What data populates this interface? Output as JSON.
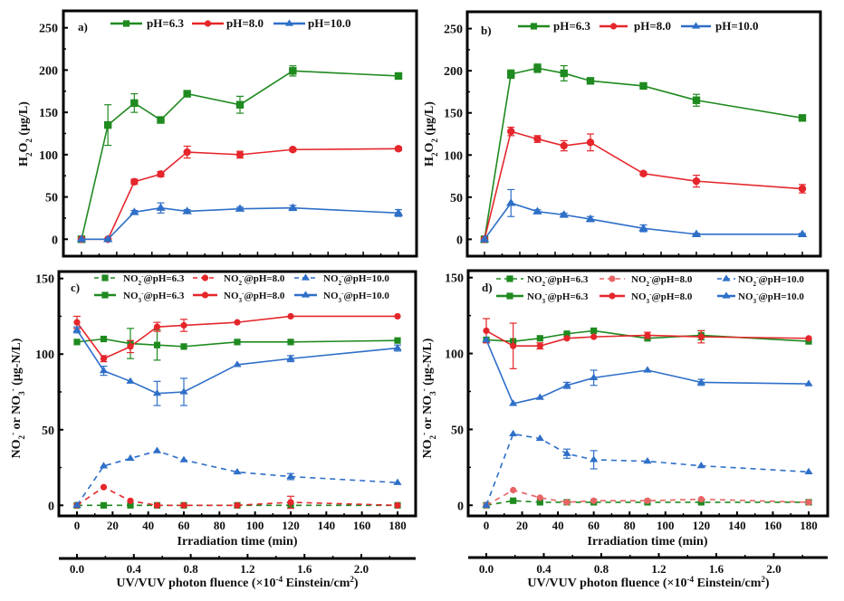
{
  "colors": {
    "pH6.3": "#1f8a1f",
    "pH8.0": "#e5262b",
    "pH10.0": "#2e6fc8",
    "pH8.0_nitrite_d": "#e86464"
  },
  "x_time": [
    0,
    15,
    30,
    45,
    60,
    90,
    120,
    180
  ],
  "chart_data": [
    {
      "type": "line",
      "panel_label": "a)",
      "ylabel": [
        {
          "t": "H"
        },
        {
          "t": "2",
          "sub": true
        },
        {
          "t": "O"
        },
        {
          "t": "2",
          "sub": true
        },
        {
          "t": " (μg/L)"
        }
      ],
      "ylim": [
        -20,
        270
      ],
      "yticks": [
        0,
        50,
        100,
        150,
        200,
        250
      ],
      "xlabel": "",
      "xticks": [],
      "xlim": [
        0,
        180
      ],
      "series": [
        {
          "name": [
            {
              "t": "pH=6.3"
            }
          ],
          "color_key": "pH6.3",
          "marker": "square",
          "dash": false,
          "x": [
            0,
            15,
            30,
            45,
            60,
            90,
            120,
            180
          ],
          "y": [
            0,
            135,
            161,
            141,
            172,
            159,
            199,
            193
          ],
          "err": [
            0,
            24,
            11,
            3,
            3,
            10,
            6,
            3
          ]
        },
        {
          "name": [
            {
              "t": "pH=8.0"
            }
          ],
          "color_key": "pH8.0",
          "marker": "circle",
          "dash": false,
          "x": [
            0,
            15,
            30,
            45,
            60,
            90,
            120,
            180
          ],
          "y": [
            0,
            0,
            68,
            77,
            103,
            100,
            106,
            107
          ],
          "err": [
            0,
            0,
            3,
            3,
            7,
            4,
            2,
            2
          ]
        },
        {
          "name": [
            {
              "t": "pH=10.0"
            }
          ],
          "color_key": "pH10.0",
          "marker": "triangle",
          "dash": false,
          "x": [
            0,
            15,
            30,
            45,
            60,
            90,
            120,
            180
          ],
          "y": [
            0,
            0,
            32,
            37,
            33,
            36,
            37,
            31
          ],
          "err": [
            0,
            0,
            2,
            6,
            2,
            2,
            3,
            4
          ]
        }
      ]
    },
    {
      "type": "line",
      "panel_label": "b)",
      "ylabel": [
        {
          "t": "H"
        },
        {
          "t": "2",
          "sub": true
        },
        {
          "t": "O"
        },
        {
          "t": "2",
          "sub": true
        },
        {
          "t": " (μg/L)"
        }
      ],
      "ylim": [
        -20,
        270
      ],
      "yticks": [
        0,
        50,
        100,
        150,
        200,
        250
      ],
      "xlabel": "",
      "xticks": [],
      "xlim": [
        0,
        180
      ],
      "series": [
        {
          "name": [
            {
              "t": "pH=6.3"
            }
          ],
          "color_key": "pH6.3",
          "marker": "square",
          "dash": false,
          "x": [
            0,
            15,
            30,
            45,
            60,
            90,
            120,
            180
          ],
          "y": [
            0,
            196,
            203,
            197,
            188,
            182,
            165,
            144
          ],
          "err": [
            0,
            5,
            5,
            9,
            2,
            2,
            7,
            2
          ]
        },
        {
          "name": [
            {
              "t": "pH=8.0"
            }
          ],
          "color_key": "pH8.0",
          "marker": "circle",
          "dash": false,
          "x": [
            0,
            15,
            30,
            45,
            60,
            90,
            120,
            180
          ],
          "y": [
            0,
            128,
            119,
            111,
            115,
            78,
            69,
            60
          ],
          "err": [
            0,
            5,
            4,
            6,
            10,
            2,
            7,
            5
          ]
        },
        {
          "name": [
            {
              "t": "pH=10.0"
            }
          ],
          "color_key": "pH10.0",
          "marker": "triangle",
          "dash": false,
          "x": [
            0,
            15,
            30,
            45,
            60,
            90,
            120,
            180
          ],
          "y": [
            0,
            43,
            33,
            29,
            24,
            13,
            6,
            6
          ],
          "err": [
            0,
            16,
            2,
            2,
            3,
            4,
            1,
            1
          ]
        }
      ]
    },
    {
      "type": "line",
      "panel_label": "c)",
      "ylabel": [
        {
          "t": "NO"
        },
        {
          "t": "2",
          "sub": true
        },
        {
          "t": "-",
          "sup": true
        },
        {
          "t": " or NO"
        },
        {
          "t": "3",
          "sub": true
        },
        {
          "t": "-",
          "sup": true
        },
        {
          "t": " (μg-N/L)"
        }
      ],
      "ylim": [
        -7,
        154.6
      ],
      "yticks": [
        0,
        50,
        100,
        150
      ],
      "xlabel": "Irradiation time (min)",
      "xticks": [
        0,
        20,
        40,
        60,
        80,
        100,
        120,
        140,
        160,
        180
      ],
      "xlim": [
        0,
        180
      ],
      "x2label": [
        {
          "t": "UV/VUV photon fluence (×10"
        },
        {
          "t": "-4",
          "sup": true
        },
        {
          "t": " Einstein/cm"
        },
        {
          "t": "2",
          "sup": true
        },
        {
          "t": ")"
        }
      ],
      "x2ticks": [
        "0.0",
        "0.4",
        "0.8",
        "1.2",
        "1.6",
        "2.0"
      ],
      "series": [
        {
          "name": [
            {
              "t": "NO"
            },
            {
              "t": "2",
              "sub": true
            },
            {
              "t": "-",
              "sup": true
            },
            {
              "t": "@pH=6.3"
            }
          ],
          "color_key": "pH6.3",
          "marker": "square",
          "dash": true,
          "x": [
            0,
            15,
            30,
            45,
            60,
            90,
            120,
            180
          ],
          "y": [
            0,
            0,
            0,
            0,
            0,
            0,
            0,
            0
          ],
          "err": [
            0,
            0,
            0,
            0,
            0,
            0,
            0,
            0
          ]
        },
        {
          "name": [
            {
              "t": "NO"
            },
            {
              "t": "2",
              "sub": true
            },
            {
              "t": "-",
              "sup": true
            },
            {
              "t": "@pH=8.0"
            }
          ],
          "color_key": "pH8.0",
          "marker": "circle",
          "dash": true,
          "x": [
            0,
            15,
            30,
            45,
            60,
            90,
            120,
            180
          ],
          "y": [
            0,
            12,
            3,
            0,
            0,
            0,
            2,
            0
          ],
          "err": [
            0,
            0,
            0,
            0,
            0,
            0,
            4,
            0
          ]
        },
        {
          "name": [
            {
              "t": "NO"
            },
            {
              "t": "2",
              "sub": true
            },
            {
              "t": "-",
              "sup": true
            },
            {
              "t": "@pH=10.0"
            }
          ],
          "color_key": "pH10.0",
          "marker": "triangle",
          "dash": true,
          "x": [
            0,
            15,
            30,
            45,
            60,
            90,
            120,
            180
          ],
          "y": [
            0,
            26,
            31,
            36,
            30,
            22,
            19,
            15
          ],
          "err": [
            0,
            0,
            0,
            0,
            0,
            0,
            2,
            0
          ]
        },
        {
          "name": [
            {
              "t": "NO"
            },
            {
              "t": "3",
              "sub": true
            },
            {
              "t": "-",
              "sup": true
            },
            {
              "t": "@pH=6.3"
            }
          ],
          "color_key": "pH6.3",
          "marker": "square",
          "dash": false,
          "x": [
            0,
            15,
            30,
            45,
            60,
            90,
            120,
            180
          ],
          "y": [
            108,
            110,
            107,
            106,
            105,
            108,
            108,
            109
          ],
          "err": [
            0,
            0,
            10,
            10,
            0,
            0,
            0,
            0
          ]
        },
        {
          "name": [
            {
              "t": "NO"
            },
            {
              "t": "3",
              "sub": true
            },
            {
              "t": "-",
              "sup": true
            },
            {
              "t": "@pH=8.0"
            }
          ],
          "color_key": "pH8.0",
          "marker": "circle",
          "dash": false,
          "x": [
            0,
            15,
            30,
            45,
            60,
            90,
            120,
            180
          ],
          "y": [
            121,
            97,
            105,
            118,
            119,
            121,
            125,
            125
          ],
          "err": [
            4,
            2,
            4,
            3,
            4,
            0,
            0,
            0
          ]
        },
        {
          "name": [
            {
              "t": "NO"
            },
            {
              "t": "3",
              "sub": true
            },
            {
              "t": "-",
              "sup": true
            },
            {
              "t": "@pH=10.0"
            }
          ],
          "color_key": "pH10.0",
          "marker": "triangle",
          "dash": false,
          "x": [
            0,
            15,
            30,
            45,
            60,
            90,
            120,
            180
          ],
          "y": [
            116,
            89,
            82,
            74,
            75,
            93,
            97,
            104
          ],
          "err": [
            2,
            3,
            0,
            8,
            9,
            0,
            2,
            2
          ]
        }
      ]
    },
    {
      "type": "line",
      "panel_label": "d)",
      "ylabel": [
        {
          "t": "NO"
        },
        {
          "t": "2",
          "sub": true
        },
        {
          "t": "-",
          "sup": true
        },
        {
          "t": " or NO"
        },
        {
          "t": "3",
          "sub": true
        },
        {
          "t": "-",
          "sup": true
        },
        {
          "t": " (μg-N/L)"
        }
      ],
      "ylim": [
        -7,
        154.6
      ],
      "yticks": [
        0,
        50,
        100,
        150
      ],
      "xlabel": "Irradiation time (min)",
      "xticks": [
        0,
        20,
        40,
        60,
        80,
        100,
        120,
        140,
        160,
        180
      ],
      "xlim": [
        0,
        180
      ],
      "x2label": [
        {
          "t": "UV/VUV photon fluence (×10"
        },
        {
          "t": "-4",
          "sup": true
        },
        {
          "t": " Einstein/cm"
        },
        {
          "t": "2",
          "sup": true
        },
        {
          "t": ")"
        }
      ],
      "x2ticks": [
        "0.0",
        "0.4",
        "0.8",
        "1.2",
        "1.6",
        "2.0"
      ],
      "series": [
        {
          "name": [
            {
              "t": "NO"
            },
            {
              "t": "2",
              "sub": true
            },
            {
              "t": "-",
              "sup": true
            },
            {
              "t": "@pH=6.3"
            }
          ],
          "color_key": "pH6.3",
          "marker": "square",
          "dash": true,
          "x": [
            0,
            15,
            30,
            45,
            60,
            90,
            120,
            180
          ],
          "y": [
            0,
            3,
            2,
            2,
            2,
            2,
            2,
            2
          ],
          "err": [
            0,
            0,
            0,
            0,
            0,
            0,
            0,
            0
          ]
        },
        {
          "name": [
            {
              "t": "NO"
            },
            {
              "t": "2",
              "sub": true
            },
            {
              "t": "-",
              "sup": true
            },
            {
              "t": "@pH=8.0"
            }
          ],
          "color_key": "pH8.0_nitrite_d",
          "marker": "circle",
          "dash": true,
          "x": [
            0,
            15,
            30,
            45,
            60,
            90,
            120,
            180
          ],
          "y": [
            0,
            10,
            5,
            2,
            3,
            3,
            4,
            2
          ],
          "err": [
            0,
            0,
            0,
            0,
            0,
            0,
            0,
            0
          ]
        },
        {
          "name": [
            {
              "t": "NO"
            },
            {
              "t": "2",
              "sub": true
            },
            {
              "t": "-",
              "sup": true
            },
            {
              "t": "@pH=10.0"
            }
          ],
          "color_key": "pH10.0",
          "marker": "triangle",
          "dash": true,
          "x": [
            0,
            15,
            30,
            45,
            60,
            90,
            120,
            180
          ],
          "y": [
            0,
            47,
            44,
            34,
            30,
            29,
            26,
            22
          ],
          "err": [
            0,
            0,
            0,
            3,
            6,
            0,
            0,
            0
          ]
        },
        {
          "name": [
            {
              "t": "NO"
            },
            {
              "t": "3",
              "sub": true
            },
            {
              "t": "-",
              "sup": true
            },
            {
              "t": "@pH=6.3"
            }
          ],
          "color_key": "pH6.3",
          "marker": "square",
          "dash": false,
          "x": [
            0,
            15,
            30,
            45,
            60,
            90,
            120,
            180
          ],
          "y": [
            109,
            108,
            110,
            113,
            115,
            110,
            112,
            108
          ],
          "err": [
            0,
            0,
            0,
            0,
            0,
            0,
            3,
            0
          ]
        },
        {
          "name": [
            {
              "t": "NO"
            },
            {
              "t": "3",
              "sub": true
            },
            {
              "t": "-",
              "sup": true
            },
            {
              "t": "@pH=8.0"
            }
          ],
          "color_key": "pH8.0",
          "marker": "circle",
          "dash": false,
          "x": [
            0,
            15,
            30,
            45,
            60,
            90,
            120,
            180
          ],
          "y": [
            115,
            105,
            105,
            110,
            111,
            112,
            111,
            110
          ],
          "err": [
            8,
            15,
            2,
            0,
            0,
            2,
            4,
            0
          ]
        },
        {
          "name": [
            {
              "t": "NO"
            },
            {
              "t": "3",
              "sub": true
            },
            {
              "t": "-",
              "sup": true
            },
            {
              "t": "@pH=10.0"
            }
          ],
          "color_key": "pH10.0",
          "marker": "triangle",
          "dash": false,
          "x": [
            0,
            15,
            30,
            45,
            60,
            90,
            120,
            180
          ],
          "y": [
            109,
            67,
            71,
            79,
            84,
            89,
            81,
            80
          ],
          "err": [
            0,
            0,
            0,
            2,
            5,
            0,
            2,
            0
          ]
        }
      ]
    }
  ]
}
